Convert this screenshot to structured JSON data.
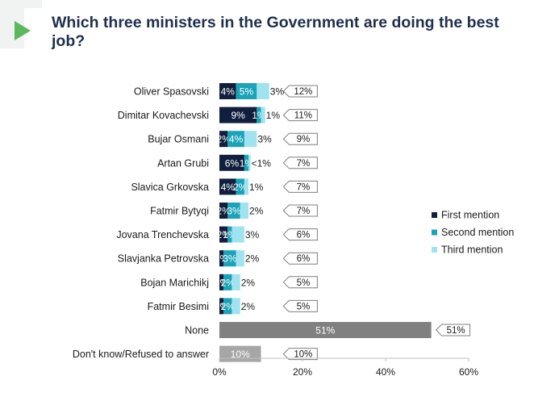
{
  "title": "Which three ministers in the Government are doing the best job?",
  "colors": {
    "first": "#0f1f3d",
    "second": "#1ba3b8",
    "third": "#9fe3ee",
    "none": "#808080",
    "dk": "#a6a6a6",
    "accent": "#5cb85c",
    "title": "#1f2f4d"
  },
  "chart_data": {
    "type": "bar",
    "orientation": "horizontal",
    "stacked": true,
    "categories": [
      "Oliver Spasovski",
      "Dimitar Kovachevski",
      "Bujar Osmani",
      "Artan Grubi",
      "Slavica Grkovska",
      "Fatmir Bytyqi",
      "Jovana Trenchevska",
      "Slavjanka Petrovska",
      "Bojan Marichikj",
      "Fatmir Besimi",
      "None",
      "Don't know/Refused to answer"
    ],
    "series": [
      {
        "name": "First mention",
        "values": [
          4,
          9,
          2,
          6,
          4,
          2,
          2,
          1,
          1,
          1,
          51,
          10
        ],
        "labels": [
          "4%",
          "9%",
          "2%",
          "6%",
          "4%",
          "2%",
          "2%",
          "1%",
          "1%",
          "1%",
          "51%",
          "10%"
        ]
      },
      {
        "name": "Second mention",
        "values": [
          5,
          1,
          4,
          1,
          2,
          3,
          1,
          3,
          2,
          2,
          0,
          0
        ],
        "labels": [
          "5%",
          "1%",
          "4%",
          "1%",
          "2%",
          "3%",
          "1%",
          "3%",
          "2%",
          "2%",
          "",
          ""
        ]
      },
      {
        "name": "Third mention",
        "values": [
          3,
          1,
          3,
          0.5,
          1,
          2,
          3,
          2,
          2,
          2,
          0,
          0
        ],
        "labels": [
          "3%",
          "1%",
          "3%",
          "<1%",
          "1%",
          "2%",
          "3%",
          "2%",
          "2%",
          "2%",
          "",
          ""
        ]
      }
    ],
    "totals": [
      "12%",
      "11%",
      "9%",
      "7%",
      "7%",
      "7%",
      "6%",
      "6%",
      "5%",
      "5%",
      "51%",
      "10%"
    ],
    "xlim": [
      0,
      60
    ],
    "xticks": [
      "0%",
      "20%",
      "40%",
      "60%"
    ],
    "xtick_values": [
      0,
      20,
      40,
      60
    ],
    "legend_position": "right",
    "legend": [
      "First mention",
      "Second mention",
      "Third mention"
    ]
  }
}
